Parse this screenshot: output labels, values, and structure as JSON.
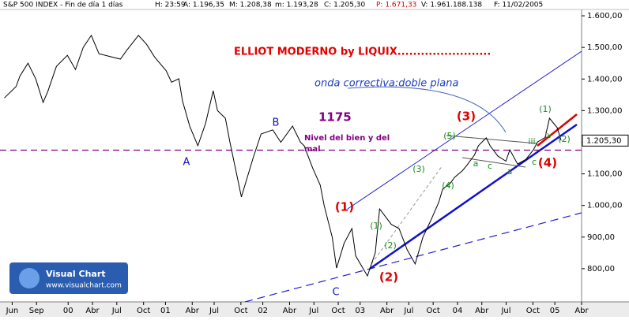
{
  "chart_data": {
    "type": "line",
    "header": [
      "S&P 500 INDEX - Fin de día 1 días",
      "H: 23:59",
      "A: 1.196,35",
      "M: 1.208,38",
      "m: 1.193,28",
      "C: 1.205,30",
      "P: 1.671,33",
      "V: 1.961.188.138",
      "F: 11/02/2005"
    ],
    "title": "ELLIOT MODERNO by LIQUIX........................",
    "subtitle": "onda correctiva:doble plana",
    "level": {
      "value": 1175,
      "label": "1175",
      "note": [
        "Nivel del bien y del",
        "mal"
      ],
      "color": "#800080"
    },
    "last_price": {
      "value": 1205.3,
      "label": "1.205,30"
    },
    "waves": {
      "major": [
        "A",
        "B",
        "C"
      ],
      "impulse": [
        "(1)",
        "(2)",
        "(3)",
        "(4)"
      ],
      "minor": [
        "(1)",
        "(2)",
        "(3)",
        "(4)",
        "(5)",
        "a",
        "c",
        "a",
        "c",
        "(1)",
        "(2)",
        "iii",
        "iv"
      ]
    },
    "logo": [
      "Visual Chart",
      "www.visualchart.com"
    ],
    "color": "#000000",
    "x": [
      -0.32,
      0.16,
      0.32,
      0.65,
      0.97,
      1.27,
      1.46,
      1.82,
      2.27,
      2.6,
      2.92,
      3.25,
      3.57,
      4.45,
      4.7,
      5.19,
      5.52,
      5.85,
      6.33,
      6.55,
      6.85,
      7.0,
      7.3,
      7.63,
      7.95,
      8.26,
      8.44,
      8.76,
      8.95,
      9.42,
      9.9,
      10.23,
      10.71,
      11.04,
      11.52,
      11.85,
      12.0,
      12.34,
      12.66,
      12.82,
      13.15,
      13.33,
      13.64,
      13.96,
      14.12,
      14.6,
      14.92,
      15.1,
      15.58,
      15.9,
      16.23,
      16.56,
      16.88,
      17.2,
      17.53,
      17.69,
      18.0,
      18.18,
      18.5,
      18.68,
      19.0,
      19.16,
      19.48,
      19.64,
      19.96,
      20.29,
      20.45,
      20.77,
      21.1,
      21.42,
      21.59,
      21.9,
      22.08,
      22.4,
      22.56
    ],
    "values": [
      1340,
      1376,
      1410,
      1450,
      1400,
      1326,
      1360,
      1440,
      1475,
      1430,
      1500,
      1538,
      1480,
      1463,
      1490,
      1538,
      1510,
      1470,
      1426,
      1390,
      1401,
      1330,
      1250,
      1189,
      1260,
      1363,
      1300,
      1276,
      1200,
      1027,
      1150,
      1226,
      1239,
      1200,
      1251,
      1200,
      1189,
      1120,
      1064,
      1000,
      900,
      802,
      880,
      927,
      840,
      777,
      850,
      989,
      940,
      927,
      860,
      815,
      900,
      952,
      1010,
      1052,
      1070,
      1089,
      1110,
      1126,
      1160,
      1189,
      1214,
      1189,
      1156,
      1140,
      1176,
      1131,
      1145,
      1176,
      1201,
      1215,
      1276,
      1246,
      1205.3
    ],
    "xlim": [
      -0.5,
      23.4
    ],
    "ylim": [
      695,
      1650
    ],
    "yticks": [
      {
        "value": 800,
        "label": "800,00"
      },
      {
        "value": 900,
        "label": "900,00"
      },
      {
        "value": 1000,
        "label": "1.000,00"
      },
      {
        "value": 1100,
        "label": "1.100,00"
      },
      {
        "value": 1200,
        "label": "1.200,00"
      },
      {
        "value": 1300,
        "label": "1.300,00"
      },
      {
        "value": 1400,
        "label": "1.400,00"
      },
      {
        "value": 1500,
        "label": "1.500,00"
      },
      {
        "value": 1600,
        "label": "1.600,00"
      }
    ],
    "xticks": [
      {
        "value": 0,
        "label": "Jun"
      },
      {
        "value": 1,
        "label": "Sep"
      },
      {
        "value": 2.3,
        "label": "00"
      },
      {
        "value": 3.3,
        "label": "Abr"
      },
      {
        "value": 4.3,
        "label": "Jul"
      },
      {
        "value": 5.4,
        "label": "Oct"
      },
      {
        "value": 6.3,
        "label": "01"
      },
      {
        "value": 7.4,
        "label": "Abr"
      },
      {
        "value": 8.3,
        "label": "Jul"
      },
      {
        "value": 9.4,
        "label": "Oct"
      },
      {
        "value": 10.3,
        "label": "02"
      },
      {
        "value": 11.4,
        "label": "Abr"
      },
      {
        "value": 12.4,
        "label": "Jul"
      },
      {
        "value": 13.4,
        "label": "Oct"
      },
      {
        "value": 14.3,
        "label": "03"
      },
      {
        "value": 15.4,
        "label": "Abr"
      },
      {
        "value": 16.3,
        "label": "Jul"
      },
      {
        "value": 17.3,
        "label": "Oct"
      },
      {
        "value": 18.3,
        "label": "04"
      },
      {
        "value": 19.3,
        "label": "Abr"
      },
      {
        "value": 20.3,
        "label": "Jul"
      },
      {
        "value": 21.4,
        "label": "Oct"
      },
      {
        "value": 22.3,
        "label": "05"
      },
      {
        "value": 23.4,
        "label": "Abr"
      }
    ]
  }
}
